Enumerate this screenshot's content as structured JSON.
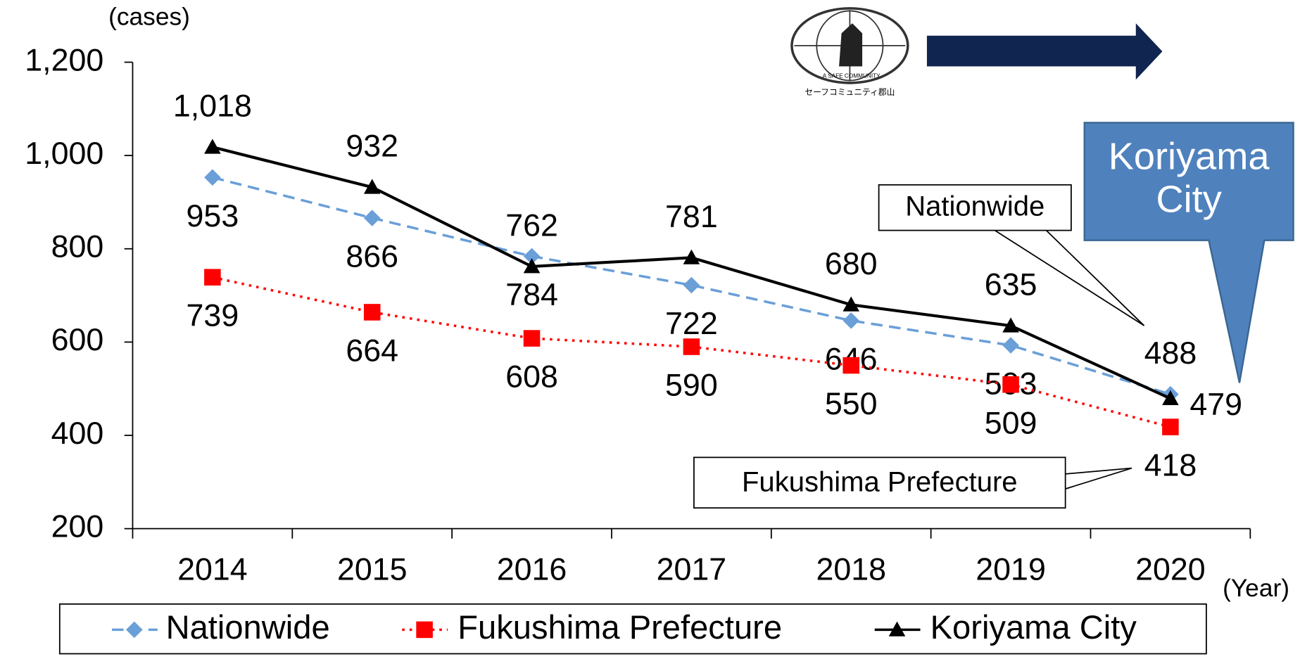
{
  "chart_data": {
    "type": "line",
    "y_unit": "(cases)",
    "x_unit": "(Year)",
    "categories": [
      "2014",
      "2015",
      "2016",
      "2017",
      "2018",
      "2019",
      "2020"
    ],
    "series": [
      {
        "name": "Nationwide",
        "color": "#6a9fd8",
        "marker": "diamond",
        "line_style": "dashed",
        "values": [
          953,
          866,
          784,
          722,
          646,
          593,
          488
        ]
      },
      {
        "name": "Fukushima Prefecture",
        "color": "#ff0000",
        "marker": "square",
        "line_style": "dotted",
        "values": [
          739,
          664,
          608,
          590,
          550,
          509,
          418
        ]
      },
      {
        "name": "Koriyama City",
        "color": "#000000",
        "marker": "triangle",
        "line_style": "solid",
        "values": [
          1018,
          932,
          762,
          781,
          680,
          635,
          479
        ],
        "value_labels": [
          "1,018",
          "932",
          "762",
          "781",
          "680",
          "635",
          "479"
        ]
      }
    ],
    "ylim": [
      200,
      1200
    ],
    "yticks": [
      200,
      400,
      600,
      800,
      {
        "value": 1000,
        "label": "1,000"
      },
      {
        "value": 1200,
        "label": "1,200"
      }
    ],
    "annotations": {
      "nationwide": "Nationwide",
      "fukushima": "Fukushima Prefecture",
      "koriyama": "Koriyama City"
    },
    "logo": {
      "top": "A SAFE COMMUNITY",
      "bottom": "セーフコミュニティ郡山"
    },
    "legend": "bottom"
  }
}
